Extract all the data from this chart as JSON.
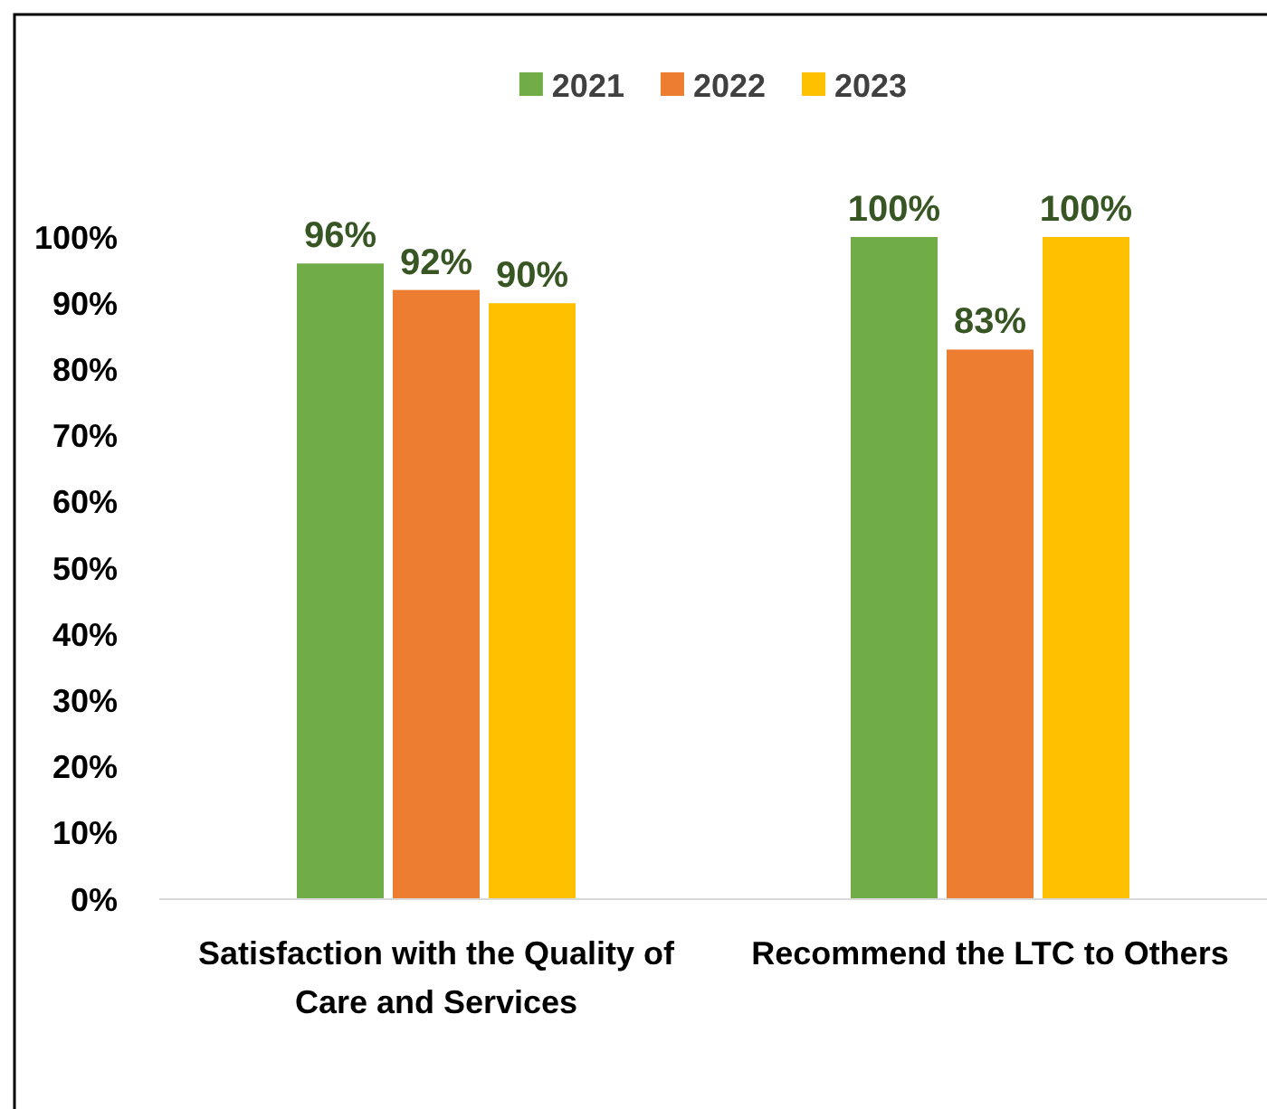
{
  "chart_data": {
    "type": "bar",
    "categories": [
      "Satisfaction with the Quality of Care and Services",
      "Recommend the LTC to Others"
    ],
    "series": [
      {
        "name": "2021",
        "color": "#70ad47",
        "values": [
          96,
          100
        ],
        "value_labels": [
          "96%",
          "100%"
        ]
      },
      {
        "name": "2022",
        "color": "#ed7d31",
        "values": [
          92,
          83
        ],
        "value_labels": [
          "92%",
          "83%"
        ]
      },
      {
        "name": "2023",
        "color": "#ffc000",
        "values": [
          90,
          100
        ],
        "value_labels": [
          "90%",
          "100%"
        ]
      }
    ],
    "ylim": [
      0,
      100
    ],
    "yticks": [
      {
        "value": 0,
        "label": "0%"
      },
      {
        "value": 10,
        "label": "10%"
      },
      {
        "value": 20,
        "label": "20%"
      },
      {
        "value": 30,
        "label": "30%"
      },
      {
        "value": 40,
        "label": "40%"
      },
      {
        "value": 50,
        "label": "50%"
      },
      {
        "value": 60,
        "label": "60%"
      },
      {
        "value": 70,
        "label": "70%"
      },
      {
        "value": 80,
        "label": "80%"
      },
      {
        "value": 90,
        "label": "90%"
      },
      {
        "value": 100,
        "label": "100%"
      }
    ],
    "grid": false,
    "legend": "top"
  }
}
